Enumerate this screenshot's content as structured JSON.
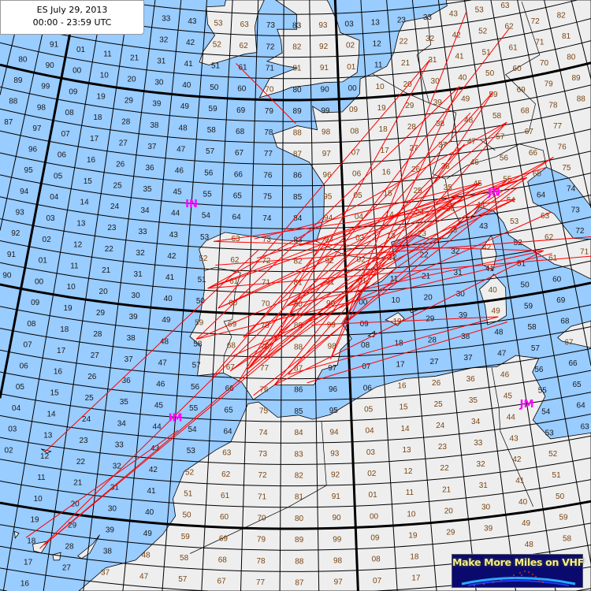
{
  "title": {
    "line1": "ES July 29, 2013",
    "line2": "00:00 - 23:59 UTC"
  },
  "logo": {
    "text": "Make More Miles on VHF"
  },
  "colors": {
    "sea": "#99ccff",
    "land": "#eeeeee",
    "path": "#ff0000",
    "grid": "#000000",
    "field_marker": "#ff00ff",
    "square_label_land": "#7a4512",
    "square_label_sea": "#1a1a1a",
    "logo_bg": "#0a0a6e",
    "logo_text": "#f5f08a"
  },
  "grid": {
    "system": "Maidenhead locator",
    "square_lon_deg": 2,
    "square_lat_deg": 1,
    "field_lon_deg": 20,
    "field_lat_deg": 10
  },
  "field_markers": [
    {
      "label": "IN",
      "lon": -10,
      "lat": 45
    },
    {
      "label": "JN",
      "lon": 10,
      "lat": 45
    },
    {
      "label": "IM",
      "lon": -10,
      "lat": 35
    },
    {
      "label": "JM",
      "lon": 10,
      "lat": 35
    }
  ],
  "land": [
    {
      "name": "europe",
      "coords": [
        [
          -1.8,
          43.4
        ],
        [
          -3.8,
          43.45
        ],
        [
          -5.8,
          43.6
        ],
        [
          -7.7,
          43.75
        ],
        [
          -8.9,
          43.3
        ],
        [
          -9.3,
          42.9
        ],
        [
          -8.9,
          42.1
        ],
        [
          -8.8,
          41.0
        ],
        [
          -9.0,
          39.6
        ],
        [
          -9.5,
          38.8
        ],
        [
          -8.8,
          38.4
        ],
        [
          -8.9,
          37.0
        ],
        [
          -7.4,
          37.2
        ],
        [
          -6.3,
          36.8
        ],
        [
          -5.6,
          36.0
        ],
        [
          -4.4,
          36.7
        ],
        [
          -2.1,
          36.7
        ],
        [
          -1.6,
          37.4
        ],
        [
          -0.7,
          37.6
        ],
        [
          -0.5,
          38.3
        ],
        [
          0.2,
          38.8
        ],
        [
          -0.3,
          39.5
        ],
        [
          0.5,
          40.5
        ],
        [
          1.0,
          41.1
        ],
        [
          2.2,
          41.4
        ],
        [
          3.2,
          42.0
        ],
        [
          3.1,
          42.5
        ],
        [
          3.0,
          43.2
        ],
        [
          4.5,
          43.45
        ],
        [
          5.4,
          43.2
        ],
        [
          6.6,
          43.15
        ],
        [
          7.5,
          43.8
        ],
        [
          8.2,
          43.9
        ],
        [
          8.9,
          44.4
        ],
        [
          9.8,
          44.1
        ],
        [
          10.3,
          43.5
        ],
        [
          10.5,
          42.9
        ],
        [
          11.2,
          42.4
        ],
        [
          12.3,
          41.7
        ],
        [
          13.0,
          41.2
        ],
        [
          14.0,
          40.8
        ],
        [
          15.0,
          40.2
        ],
        [
          15.7,
          40.0
        ],
        [
          16.1,
          38.9
        ],
        [
          15.65,
          38.0
        ],
        [
          16.1,
          37.95
        ],
        [
          17.1,
          39.0
        ],
        [
          16.5,
          39.7
        ],
        [
          17.0,
          40.5
        ],
        [
          18.5,
          40.1
        ],
        [
          18.0,
          40.6
        ],
        [
          16.0,
          41.4
        ],
        [
          16.0,
          41.9
        ],
        [
          14.5,
          42.2
        ],
        [
          13.6,
          43.5
        ],
        [
          12.4,
          44.2
        ],
        [
          12.3,
          45.2
        ],
        [
          13.7,
          45.7
        ],
        [
          14.5,
          45.3
        ],
        [
          15.0,
          45.0
        ],
        [
          16.0,
          43.5
        ],
        [
          17.5,
          43.0
        ],
        [
          19.0,
          42.0
        ],
        [
          19.5,
          41.8
        ],
        [
          19.4,
          40.5
        ],
        [
          20.0,
          39.6
        ],
        [
          22.0,
          38.5
        ],
        [
          28.0,
          38.5
        ],
        [
          28.0,
          54.5
        ],
        [
          19.0,
          54.6
        ],
        [
          14.0,
          54.0
        ],
        [
          11.0,
          54.0
        ],
        [
          10.6,
          57.7
        ],
        [
          8.1,
          56.5
        ],
        [
          8.6,
          55.0
        ],
        [
          8.6,
          53.9
        ],
        [
          7.0,
          53.5
        ],
        [
          5.2,
          53.4
        ],
        [
          4.7,
          52.9
        ],
        [
          4.2,
          52.0
        ],
        [
          3.6,
          51.4
        ],
        [
          2.5,
          51.1
        ],
        [
          1.6,
          50.9
        ],
        [
          1.5,
          50.2
        ],
        [
          0.2,
          49.4
        ],
        [
          -1.2,
          49.4
        ],
        [
          -1.9,
          49.7
        ],
        [
          -1.6,
          48.6
        ],
        [
          -3.0,
          48.8
        ],
        [
          -4.7,
          48.4
        ],
        [
          -4.4,
          47.8
        ],
        [
          -2.2,
          47.1
        ],
        [
          -1.2,
          46.0
        ],
        [
          -1.3,
          44.5
        ]
      ]
    },
    {
      "name": "africa",
      "coords": [
        [
          -5.9,
          35.8
        ],
        [
          -6.3,
          35.0
        ],
        [
          -6.8,
          34.0
        ],
        [
          -7.6,
          33.6
        ],
        [
          -9.3,
          32.5
        ],
        [
          -9.8,
          31.2
        ],
        [
          -9.6,
          30.4
        ],
        [
          -10.2,
          29.5
        ],
        [
          -11.5,
          28.2
        ],
        [
          -13.0,
          27.7
        ],
        [
          -14.5,
          26.2
        ],
        [
          -16.0,
          24.0
        ],
        [
          -16.0,
          20.0
        ],
        [
          25.0,
          20.0
        ],
        [
          25.0,
          32.0
        ],
        [
          11.0,
          33.2
        ],
        [
          10.2,
          34.2
        ],
        [
          11.1,
          35.2
        ],
        [
          10.6,
          36.4
        ],
        [
          11.1,
          37.0
        ],
        [
          10.2,
          37.2
        ],
        [
          9.8,
          37.3
        ],
        [
          8.6,
          36.9
        ],
        [
          7.2,
          37.0
        ],
        [
          5.0,
          36.8
        ],
        [
          3.2,
          36.8
        ],
        [
          1.5,
          36.5
        ],
        [
          0.1,
          35.9
        ],
        [
          -1.2,
          35.3
        ],
        [
          -2.2,
          35.1
        ],
        [
          -3.0,
          35.3
        ],
        [
          -4.2,
          35.2
        ],
        [
          -5.3,
          35.9
        ]
      ]
    },
    {
      "name": "great-britain",
      "coords": [
        [
          -5.7,
          50.1
        ],
        [
          -4.2,
          50.4
        ],
        [
          -3.4,
          50.6
        ],
        [
          -2.0,
          50.7
        ],
        [
          -1.0,
          50.8
        ],
        [
          0.3,
          50.8
        ],
        [
          1.4,
          51.2
        ],
        [
          1.6,
          52.0
        ],
        [
          1.7,
          52.7
        ],
        [
          0.3,
          53.1
        ],
        [
          0.1,
          53.6
        ],
        [
          -0.5,
          54.5
        ],
        [
          -1.5,
          55.5
        ],
        [
          -3.0,
          57.0
        ],
        [
          -6.0,
          57.0
        ],
        [
          -5.0,
          54.8
        ],
        [
          -3.0,
          54.0
        ],
        [
          -3.0,
          53.3
        ],
        [
          -4.5,
          53.3
        ],
        [
          -4.2,
          52.8
        ],
        [
          -4.1,
          52.2
        ],
        [
          -5.2,
          51.8
        ],
        [
          -4.0,
          51.6
        ],
        [
          -3.0,
          51.5
        ],
        [
          -4.2,
          51.2
        ],
        [
          -5.0,
          51.0
        ]
      ]
    },
    {
      "name": "ireland",
      "coords": [
        [
          -6.0,
          52.2
        ],
        [
          -6.2,
          53.4
        ],
        [
          -6.0,
          54.0
        ],
        [
          -5.5,
          54.7
        ],
        [
          -6.0,
          55.3
        ],
        [
          -7.3,
          55.4
        ],
        [
          -8.4,
          55.1
        ],
        [
          -8.6,
          54.3
        ],
        [
          -10.0,
          54.2
        ],
        [
          -9.8,
          53.4
        ],
        [
          -9.2,
          52.9
        ],
        [
          -10.0,
          52.1
        ],
        [
          -10.2,
          51.6
        ],
        [
          -9.5,
          51.5
        ],
        [
          -8.2,
          51.8
        ],
        [
          -6.9,
          52.1
        ]
      ]
    },
    {
      "name": "corsica",
      "coords": [
        [
          9.4,
          43.0
        ],
        [
          9.55,
          42.1
        ],
        [
          9.2,
          41.4
        ],
        [
          8.6,
          41.7
        ],
        [
          8.6,
          42.4
        ],
        [
          9.0,
          42.7
        ]
      ]
    },
    {
      "name": "sardinia",
      "coords": [
        [
          9.2,
          41.2
        ],
        [
          9.8,
          40.5
        ],
        [
          9.6,
          39.2
        ],
        [
          9.0,
          39.0
        ],
        [
          8.4,
          38.9
        ],
        [
          8.4,
          39.8
        ],
        [
          8.2,
          40.6
        ],
        [
          8.8,
          40.9
        ]
      ]
    },
    {
      "name": "sicily",
      "coords": [
        [
          12.4,
          37.8
        ],
        [
          13.3,
          38.2
        ],
        [
          15.6,
          38.3
        ],
        [
          15.1,
          37.3
        ],
        [
          15.1,
          36.65
        ],
        [
          14.3,
          37.0
        ],
        [
          12.6,
          37.6
        ]
      ]
    },
    {
      "name": "mallorca",
      "coords": [
        [
          2.3,
          39.6
        ],
        [
          3.1,
          39.9
        ],
        [
          3.45,
          39.6
        ],
        [
          3.0,
          39.3
        ],
        [
          2.6,
          39.5
        ]
      ]
    },
    {
      "name": "menorca",
      "coords": [
        [
          3.8,
          40.0
        ],
        [
          4.3,
          39.95
        ],
        [
          3.9,
          39.85
        ]
      ]
    },
    {
      "name": "ibiza",
      "coords": [
        [
          1.2,
          38.9
        ],
        [
          1.6,
          39.1
        ],
        [
          1.55,
          38.85
        ]
      ]
    },
    {
      "name": "tenerife",
      "coords": [
        [
          -16.9,
          28.35
        ],
        [
          -16.1,
          28.6
        ],
        [
          -16.4,
          28.0
        ],
        [
          -16.8,
          28.05
        ]
      ]
    },
    {
      "name": "gran-canaria",
      "coords": [
        [
          -15.8,
          28.0
        ],
        [
          -15.4,
          28.15
        ],
        [
          -15.4,
          27.8
        ],
        [
          -15.7,
          27.75
        ]
      ]
    },
    {
      "name": "fuerteventura",
      "coords": [
        [
          -14.5,
          28.1
        ],
        [
          -13.8,
          28.75
        ],
        [
          -13.5,
          29.2
        ],
        [
          -13.9,
          28.3
        ],
        [
          -14.3,
          28.0
        ]
      ]
    },
    {
      "name": "la-palma",
      "coords": [
        [
          -17.95,
          28.8
        ],
        [
          -17.7,
          28.75
        ],
        [
          -17.85,
          28.5
        ]
      ]
    },
    {
      "name": "madeira",
      "coords": [
        [
          -17.25,
          32.8
        ],
        [
          -16.7,
          32.75
        ],
        [
          -16.9,
          32.65
        ]
      ]
    }
  ],
  "borders": [
    [
      [
        -8.9,
        41.9
      ],
      [
        -8.2,
        42.1
      ],
      [
        -6.6,
        41.9
      ],
      [
        -6.9,
        41.0
      ],
      [
        -7.0,
        39.7
      ],
      [
        -7.5,
        39.6
      ],
      [
        -7.0,
        38.9
      ],
      [
        -7.4,
        38.0
      ],
      [
        -7.4,
        37.2
      ]
    ],
    [
      [
        -1.8,
        43.4
      ],
      [
        0.0,
        42.7
      ],
      [
        1.7,
        42.5
      ],
      [
        3.1,
        42.45
      ]
    ],
    [
      [
        7.5,
        43.8
      ],
      [
        7.0,
        44.9
      ],
      [
        6.9,
        45.9
      ],
      [
        6.1,
        46.2
      ],
      [
        7.0,
        47.5
      ],
      [
        7.6,
        47.6
      ],
      [
        8.2,
        48.9
      ],
      [
        6.4,
        49.5
      ],
      [
        4.8,
        50.1
      ],
      [
        2.5,
        51.1
      ]
    ],
    [
      [
        7.0,
        45.9
      ],
      [
        8.5,
        46.4
      ],
      [
        10.5,
        46.6
      ],
      [
        12.2,
        47.0
      ],
      [
        13.7,
        46.5
      ],
      [
        13.7,
        45.7
      ]
    ],
    [
      [
        7.6,
        47.6
      ],
      [
        9.6,
        47.5
      ],
      [
        10.5,
        46.9
      ]
    ],
    [
      [
        9.6,
        47.5
      ],
      [
        13.0,
        47.5
      ],
      [
        13.8,
        48.7
      ],
      [
        12.1,
        50.3
      ],
      [
        14.8,
        50.9
      ],
      [
        14.3,
        53.5
      ]
    ],
    [
      [
        6.4,
        49.5
      ],
      [
        6.1,
        50.8
      ],
      [
        5.9,
        51.8
      ],
      [
        7.0,
        52.2
      ],
      [
        7.0,
        53.5
      ]
    ],
    [
      [
        -1.7,
        35.0
      ],
      [
        -1.5,
        32.0
      ],
      [
        -3.6,
        31.0
      ],
      [
        -8.7,
        28.7
      ]
    ],
    [
      [
        8.3,
        36.9
      ],
      [
        8.4,
        35.0
      ],
      [
        8.3,
        33.9
      ],
      [
        9.5,
        30.2
      ]
    ]
  ],
  "paths": [
    [
      -8.6,
      41.1,
      9.2,
      45.5
    ],
    [
      -8.6,
      41.1,
      11.6,
      48.1
    ],
    [
      -8.6,
      41.1,
      12.3,
      45.4
    ],
    [
      -9.1,
      38.7,
      11.3,
      44.5
    ],
    [
      -9.1,
      38.7,
      8.7,
      50.1
    ],
    [
      -6.0,
      37.4,
      9.2,
      45.5
    ],
    [
      -6.0,
      37.4,
      11.0,
      49.6
    ],
    [
      -6.0,
      37.4,
      13.0,
      52.4
    ],
    [
      -4.4,
      36.7,
      10.9,
      45.4
    ],
    [
      -4.4,
      36.7,
      8.5,
      47.4
    ],
    [
      -5.0,
      37.9,
      12.3,
      45.4
    ],
    [
      -5.0,
      37.9,
      6.8,
      51.5
    ],
    [
      -3.7,
      40.4,
      11.6,
      48.1
    ],
    [
      -3.7,
      40.4,
      14.3,
      46.1
    ],
    [
      -3.7,
      40.4,
      12.5,
      41.9
    ],
    [
      -6.3,
      38.9,
      9.2,
      48.8
    ],
    [
      -6.3,
      38.9,
      11.3,
      44.5
    ],
    [
      -7.9,
      40.2,
      10.9,
      45.4
    ],
    [
      -7.9,
      40.2,
      9.2,
      45.5
    ],
    [
      -8.4,
      43.3,
      11.3,
      44.5
    ],
    [
      -8.4,
      43.3,
      12.5,
      41.9
    ],
    [
      -5.8,
      43.5,
      9.2,
      45.5
    ],
    [
      -1.1,
      37.9,
      8.7,
      50.1
    ],
    [
      -1.1,
      37.9,
      10.0,
      53.5
    ],
    [
      -0.4,
      39.5,
      11.0,
      49.6
    ],
    [
      -2.9,
      43.2,
      12.3,
      45.4
    ],
    [
      -7.0,
      37.3,
      14.3,
      46.1
    ],
    [
      -7.0,
      37.3,
      7.7,
      45.1
    ],
    [
      -3.6,
      37.2,
      11.6,
      48.1
    ],
    [
      -3.6,
      37.2,
      9.1,
      39.2
    ],
    [
      -9.1,
      38.7,
      13.0,
      41.7
    ],
    [
      -8.6,
      41.1,
      15.5,
      41.2
    ],
    [
      -4.4,
      36.7,
      12.5,
      41.9
    ],
    [
      -6.0,
      37.4,
      8.5,
      47.4
    ],
    [
      -7.9,
      40.2,
      6.8,
      51.5
    ],
    [
      -3.7,
      40.4,
      7.7,
      45.1
    ],
    [
      -2.2,
      39.5,
      9.1,
      39.2
    ],
    [
      -5.6,
      42.6,
      13.7,
      45.7
    ],
    [
      -6.9,
      38.0,
      13.4,
      43.6
    ],
    [
      -5.6,
      36.2,
      11.5,
      45.0
    ],
    [
      -16.3,
      28.4,
      7.7,
      45.1
    ],
    [
      -16.3,
      28.4,
      9.2,
      45.5
    ],
    [
      -16.5,
      28.2,
      -3.7,
      40.4
    ],
    [
      -17.3,
      28.6,
      -9.8,
      34.4
    ],
    [
      -17.0,
      32.7,
      -5.5,
      43.0
    ],
    [
      -7.5,
      51.65,
      -3.1,
      48.9
    ],
    [
      -8.0,
      37.0,
      -1.0,
      43.5
    ],
    [
      -6.5,
      36.8,
      -1.2,
      43.6
    ],
    [
      -2.5,
      36.8,
      9.6,
      38.9
    ],
    [
      -8.2,
      42.2,
      16.5,
      42.0
    ]
  ]
}
